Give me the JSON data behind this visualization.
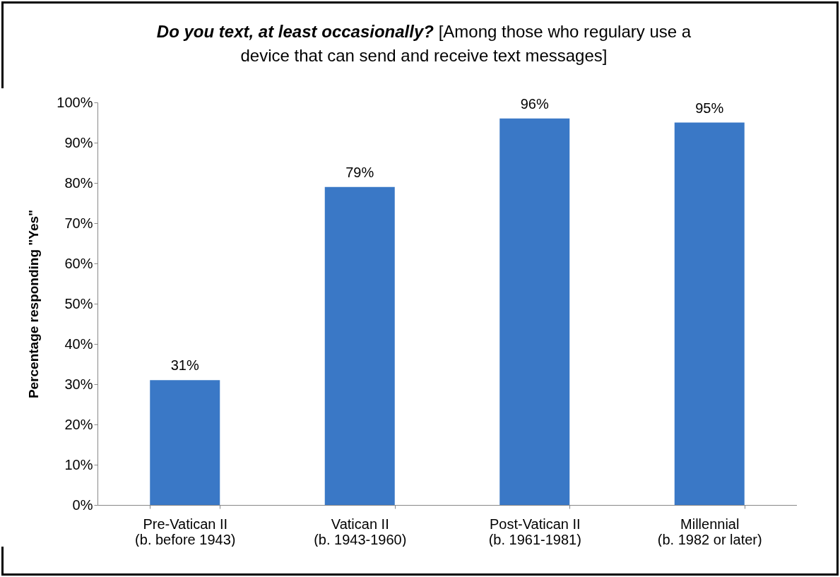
{
  "chart_data": {
    "type": "bar",
    "title": "Do you text, at least occasionally?",
    "subtitle": "[Among those who regulary use a device that can send and receive text messages]",
    "ylabel": "Percentage responding  \"Yes\"",
    "categories": [
      "Pre-Vatican II\n(b. before 1943)",
      "Vatican II\n(b. 1943-1960)",
      "Post-Vatican II\n(b. 1961-1981)",
      "Millennial\n(b. 1982 or later)"
    ],
    "values": [
      31,
      79,
      96,
      95
    ],
    "color": "#3a78c6",
    "data_labels": true,
    "value_labels": [
      "31%",
      "79%",
      "96%",
      "95%"
    ],
    "ylim": [
      0,
      100
    ],
    "yticks": [
      {
        "value": 0,
        "label": "0%"
      },
      {
        "value": 10,
        "label": "10%"
      },
      {
        "value": 20,
        "label": "20%"
      },
      {
        "value": 30,
        "label": "30%"
      },
      {
        "value": 40,
        "label": "40%"
      },
      {
        "value": 50,
        "label": "50%"
      },
      {
        "value": 60,
        "label": "60%"
      },
      {
        "value": 70,
        "label": "70%"
      },
      {
        "value": 80,
        "label": "80%"
      },
      {
        "value": 90,
        "label": "90%"
      },
      {
        "value": 100,
        "label": "100%"
      }
    ],
    "grid": false
  }
}
